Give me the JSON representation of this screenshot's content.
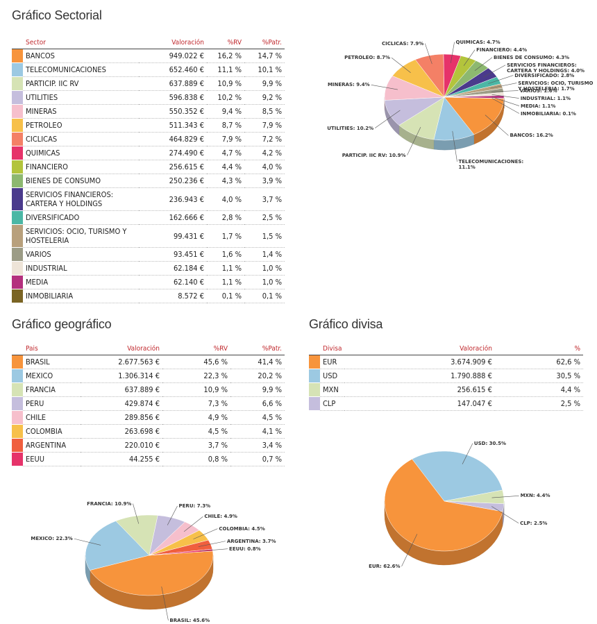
{
  "sections": [
    {
      "title": "Gráfico Sectorial",
      "table": {
        "header": [
          "Sector",
          "Valoración",
          "%RV",
          "%Patr."
        ],
        "rows": [
          [
            "BANCOS",
            "949.022 €",
            "16,2 %",
            "14,7 %"
          ],
          [
            "TELECOMUNICACIONES",
            "652.460 €",
            "11,1 %",
            "10,1 %"
          ],
          [
            "PARTICIP. IIC RV",
            "637.889 €",
            "10,9 %",
            "9,9 %"
          ],
          [
            "UTILITIES",
            "596.838 €",
            "10,2 %",
            "9,2 %"
          ],
          [
            "MINERAS",
            "550.352 €",
            "9,4 %",
            "8,5 %"
          ],
          [
            "PETROLEO",
            "511.343 €",
            "8,7 %",
            "7,9 %"
          ],
          [
            "CICLICAS",
            "464.829 €",
            "7,9 %",
            "7,2 %"
          ],
          [
            "QUIMICAS",
            "274.490 €",
            "4,7 %",
            "4,2 %"
          ],
          [
            "FINANCIERO",
            "256.615 €",
            "4,4 %",
            "4,0 %"
          ],
          [
            "BIENES DE CONSUMO",
            "250.236 €",
            "4,3 %",
            "3,9 %"
          ],
          [
            "SERVICIOS FINANCIEROS: CARTERA Y HOLDINGS",
            "236.943 €",
            "4,0 %",
            "3,7 %"
          ],
          [
            "DIVERSIFICADO",
            "162.666 €",
            "2,8 %",
            "2,5 %"
          ],
          [
            "SERVICIOS: OCIO, TURISMO Y HOSTELERIA",
            "99.431 €",
            "1,7 %",
            "1,5 %"
          ],
          [
            "VARIOS",
            "93.451 €",
            "1,6 %",
            "1,4 %"
          ],
          [
            "INDUSTRIAL",
            "62.184 €",
            "1,1 %",
            "1,0 %"
          ],
          [
            "MEDIA",
            "62.140 €",
            "1,1 %",
            "1,0 %"
          ],
          [
            "INMOBILIARIA",
            "8.572 €",
            "0,1 %",
            "0,1 %"
          ]
        ]
      }
    },
    {
      "title": "Gráfico geográfico",
      "table": {
        "header": [
          "Pais",
          "Valoración",
          "%RV",
          "%Patr."
        ],
        "rows": [
          [
            "BRASIL",
            "2.677.563 €",
            "45,6 %",
            "41,4 %"
          ],
          [
            "MEXICO",
            "1.306.314 €",
            "22,3 %",
            "20,2 %"
          ],
          [
            "FRANCIA",
            "637.889 €",
            "10,9 %",
            "9,9 %"
          ],
          [
            "PERU",
            "429.874 €",
            "7,3 %",
            "6,6 %"
          ],
          [
            "CHILE",
            "289.856 €",
            "4,9 %",
            "4,5 %"
          ],
          [
            "COLOMBIA",
            "263.698 €",
            "4,5 %",
            "4,1 %"
          ],
          [
            "ARGENTINA",
            "220.010 €",
            "3,7 %",
            "3,4 %"
          ],
          [
            "EEUU",
            "44.255 €",
            "0,8 %",
            "0,7 %"
          ]
        ]
      }
    },
    {
      "title": "Gráfico divisa",
      "table": {
        "header": [
          "Divisa",
          "Valoración",
          "%"
        ],
        "rows": [
          [
            "EUR",
            "3.674.909 €",
            "62,6 %"
          ],
          [
            "USD",
            "1.790.888 €",
            "30,5 %"
          ],
          [
            "MXN",
            "256.615 €",
            "4,4 %"
          ],
          [
            "CLP",
            "147.047 €",
            "2,5 %"
          ]
        ]
      }
    }
  ],
  "chart_data": [
    {
      "type": "pie",
      "labels": [
        "BANCOS: 16.2%",
        "TELECOMUNICACIONES: 11.1%",
        "PARTICIP. IIC RV: 10.9%",
        "UTILITIES: 10.2%",
        "MINERAS: 9.4%",
        "PETROLEO: 8.7%",
        "CICLICAS: 7.9%",
        "QUIMICAS: 4.7%",
        "FINANCIERO: 4.4%",
        "BIENES DE CONSUMO: 4.3%",
        "SERVICIOS FINANCIEROS: CARTERA Y HOLDINGS: 4.0%",
        "DIVERSIFICADO: 2.8%",
        "SERVICIOS: OCIO, TURISMO Y HOSTELERIA: 1.7%",
        "VARIOS: 1.6%",
        "INDUSTRIAL: 1.1%",
        "MEDIA: 1.1%",
        "INMOBILIARIA: 0.1%"
      ],
      "values": [
        16.2,
        11.1,
        10.9,
        10.2,
        9.4,
        8.7,
        7.9,
        4.7,
        4.4,
        4.3,
        4.0,
        2.8,
        1.7,
        1.6,
        1.1,
        1.1,
        0.1
      ],
      "colors": [
        "#f7943c",
        "#9cc9e2",
        "#d6e3b5",
        "#c5bedd",
        "#f6bfcc",
        "#f7c04a",
        "#f48066",
        "#e6336a",
        "#b3c43c",
        "#8db870",
        "#4a3a8c",
        "#4bb7a5",
        "#b8a07c",
        "#9c9c86",
        "#eee4d8",
        "#b4307e",
        "#7a6424"
      ]
    },
    {
      "type": "pie",
      "labels": [
        "BRASIL: 45.6%",
        "MEXICO: 22.3%",
        "FRANCIA: 10.9%",
        "PERU: 7.3%",
        "CHILE: 4.9%",
        "COLOMBIA: 4.5%",
        "ARGENTINA: 3.7%",
        "EEUU: 0.8%"
      ],
      "values": [
        45.6,
        22.3,
        10.9,
        7.3,
        4.9,
        4.5,
        3.7,
        0.8
      ],
      "colors": [
        "#f7943c",
        "#9cc9e2",
        "#d6e3b5",
        "#c5bedd",
        "#f6bfcc",
        "#f7c04a",
        "#f05f3e",
        "#e6336a"
      ]
    },
    {
      "type": "pie",
      "labels": [
        "EUR: 62.6%",
        "USD: 30.5%",
        "MXN: 4.4%",
        "CLP: 2.5%"
      ],
      "values": [
        62.6,
        30.5,
        4.4,
        2.5
      ],
      "colors": [
        "#f7943c",
        "#9cc9e2",
        "#d6e3b5",
        "#c5bedd"
      ]
    }
  ]
}
